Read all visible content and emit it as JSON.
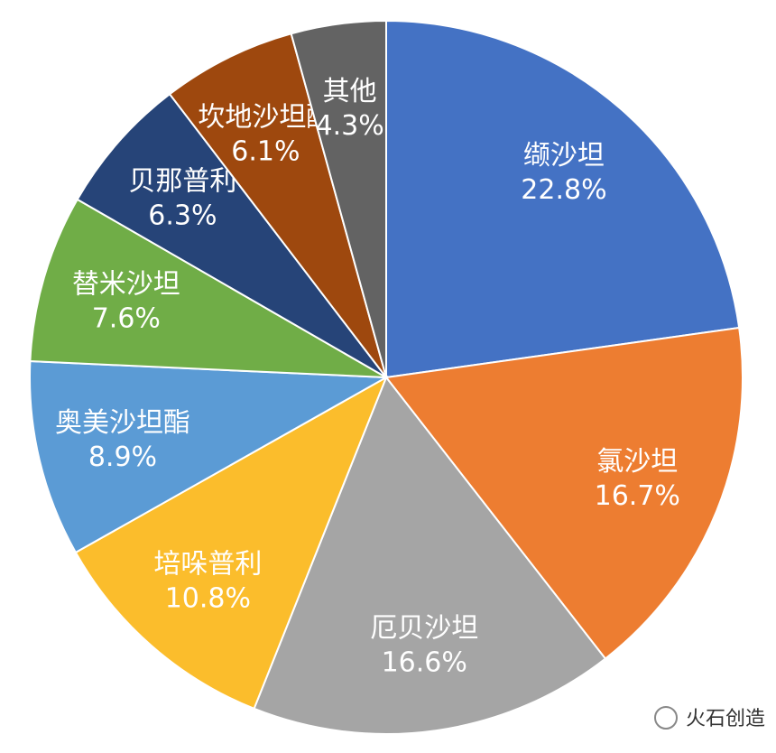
{
  "chart_data": {
    "type": "pie",
    "categories": [
      "缬沙坦",
      "氯沙坦",
      "厄贝沙坦",
      "培哚普利",
      "奥美沙坦酯",
      "替米沙坦",
      "贝那普利",
      "坎地沙坦酯",
      "其他"
    ],
    "values": [
      22.8,
      16.7,
      16.6,
      10.8,
      8.9,
      7.6,
      6.3,
      6.1,
      4.3
    ],
    "value_labels": [
      "22.8%",
      "16.7%",
      "16.6%",
      "10.8%",
      "8.9%",
      "7.6%",
      "6.3%",
      "6.1%",
      "4.3%"
    ],
    "colors": [
      "#4472c4",
      "#ed7d31",
      "#a5a5a5",
      "#fbbd2c",
      "#5b9bd5",
      "#70ad47",
      "#264478",
      "#9e480e",
      "#636363"
    ]
  },
  "watermark": "火石创造"
}
